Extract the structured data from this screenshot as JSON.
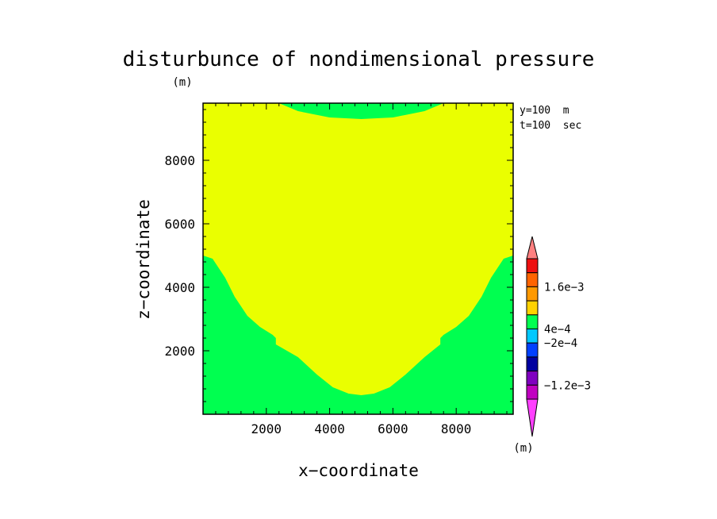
{
  "chart_data": {
    "type": "heatmap",
    "title": "disturbunce of nondimensional pressure",
    "unit_label": "(m)",
    "xlabel": "x−coordinate",
    "ylabel": "z−coordinate",
    "xlim": [
      0,
      9800
    ],
    "ylim": [
      0,
      9800
    ],
    "x_ticks": [
      2000,
      4000,
      6000,
      8000
    ],
    "y_ticks": [
      2000,
      4000,
      6000,
      8000
    ],
    "x_tick_labels": [
      "2000",
      "4000",
      "6000",
      "8000"
    ],
    "y_tick_labels": [
      "2000",
      "4000",
      "6000",
      "8000"
    ],
    "annotations": [
      "y=100  m",
      "t=100  sec"
    ],
    "background_region": {
      "level": "-2e-4 to 4e-4",
      "color": "#eaff00"
    },
    "regions": [
      {
        "name": "top-green",
        "color": "#00ff50",
        "boundary": [
          [
            2400,
            9800
          ],
          [
            3000,
            9550
          ],
          [
            4000,
            9350
          ],
          [
            5000,
            9300
          ],
          [
            6000,
            9350
          ],
          [
            7000,
            9550
          ],
          [
            7600,
            9800
          ]
        ]
      },
      {
        "name": "bottom-green",
        "color": "#00ff50",
        "boundary": [
          [
            0,
            0
          ],
          [
            0,
            5000
          ],
          [
            300,
            4900
          ],
          [
            700,
            4300
          ],
          [
            1000,
            3700
          ],
          [
            1400,
            3100
          ],
          [
            1800,
            2750
          ],
          [
            2200,
            2500
          ],
          [
            2300,
            2400
          ],
          [
            2300,
            2200
          ],
          [
            3000,
            1800
          ],
          [
            3600,
            1250
          ],
          [
            4100,
            850
          ],
          [
            4600,
            650
          ],
          [
            5000,
            600
          ],
          [
            5400,
            650
          ],
          [
            5900,
            850
          ],
          [
            6400,
            1250
          ],
          [
            7000,
            1800
          ],
          [
            7500,
            2200
          ],
          [
            7500,
            2400
          ],
          [
            7600,
            2500
          ],
          [
            8000,
            2750
          ],
          [
            8400,
            3100
          ],
          [
            8800,
            3700
          ],
          [
            9100,
            4300
          ],
          [
            9500,
            4900
          ],
          [
            9800,
            5000
          ],
          [
            9800,
            0
          ]
        ]
      }
    ],
    "colorbar": {
      "unit": "(m)",
      "colors": [
        "#ff8080",
        "#ee1010",
        "#ff6400",
        "#ff9900",
        "#ffd200",
        "#00ff50",
        "#00c8ff",
        "#0040ff",
        "#0000a0",
        "#8000c0",
        "#c000c0",
        "#ff40ff"
      ],
      "labels": [
        {
          "text": "1.6e−3",
          "boundary": 2
        },
        {
          "text": "4e−4",
          "boundary": 5
        },
        {
          "text": "−2e−4",
          "boundary": 6
        },
        {
          "text": "−1.2e−3",
          "boundary": 9
        }
      ]
    }
  }
}
